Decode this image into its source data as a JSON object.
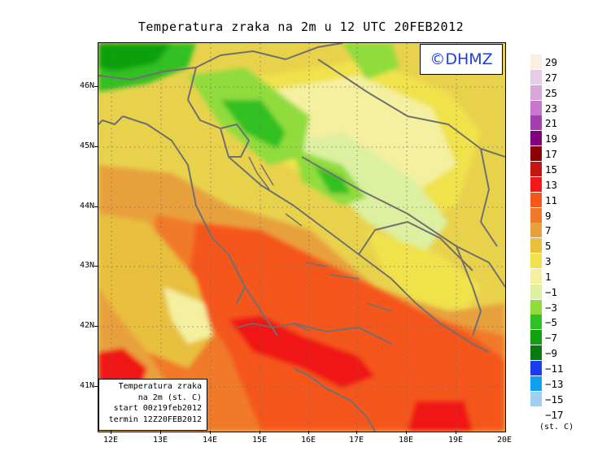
{
  "title": "Temperatura zraka na 2m u 12 UTC 20FEB2012",
  "badge": "©DHMZ",
  "info_box": {
    "line1": "Temperatura zraka",
    "line2": "na 2m (st. C)",
    "line3": "start 00z19feb2012",
    "line4": "termin 12Z20FEB2012"
  },
  "lat_labels": [
    "46N",
    "45N",
    "44N",
    "43N",
    "42N",
    "41N"
  ],
  "lon_labels": [
    "12E",
    "13E",
    "14E",
    "15E",
    "16E",
    "17E",
    "18E",
    "19E",
    "20E"
  ],
  "legend": {
    "unit": "(st. C)",
    "labels": [
      "29",
      "27",
      "25",
      "23",
      "21",
      "19",
      "17",
      "15",
      "13",
      "11",
      "9",
      "7",
      "5",
      "3",
      "1",
      "−1",
      "−3",
      "−5",
      "−7",
      "−9",
      "−11",
      "−13",
      "−15",
      "−17"
    ],
    "colors": [
      "#fbefe2",
      "#e6cce6",
      "#d8a6d8",
      "#c878cc",
      "#a33fb0",
      "#800080",
      "#8b0000",
      "#c41414",
      "#f01818",
      "#f4561c",
      "#f07a2c",
      "#e8a03c",
      "#e8c03c",
      "#f0e24c",
      "#f4f0a0",
      "#dcf0a0",
      "#90dc3c",
      "#30c024",
      "#10a010",
      "#0a7a10",
      "#1c3cf0",
      "#10a0f0",
      "#a0d0f0",
      "#e6f8fa"
    ]
  }
}
